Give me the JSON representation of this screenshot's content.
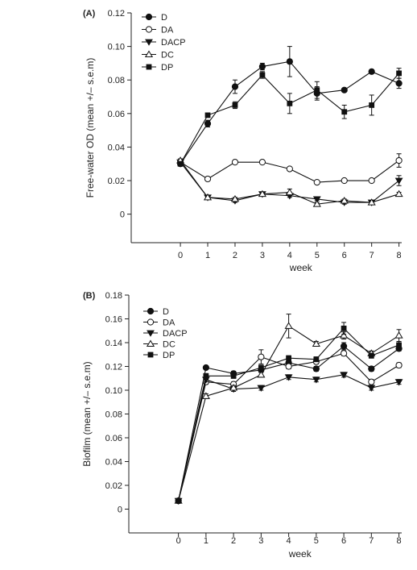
{
  "chart_data": [
    {
      "panel_label": "(A)",
      "type": "line",
      "ylabel": "Free-water OD (mean +/– s.e.m)",
      "xlabel": "week",
      "xlim": [
        -1.8,
        8.1
      ],
      "ylim": [
        -0.017,
        0.12
      ],
      "yticks": [
        0,
        0.02,
        0.04,
        0.06,
        0.08,
        0.1,
        0.12
      ],
      "ytick_labels": [
        "0",
        "0.02",
        "0.04",
        "0.06",
        "0.08",
        "0.10",
        "0.12"
      ],
      "xticks": [
        0,
        1,
        2,
        3,
        4,
        5,
        6,
        7,
        8
      ],
      "xtick_labels": [
        "0",
        "1",
        "2",
        "3",
        "4",
        "5",
        "6",
        "7",
        "8"
      ],
      "legend_position": "top-left",
      "series": [
        {
          "name": "D",
          "marker": "filled-circle",
          "x": [
            0,
            1,
            2,
            3,
            4,
            5,
            6,
            7,
            8
          ],
          "values": [
            0.03,
            0.054,
            0.076,
            0.088,
            0.091,
            0.072,
            0.074,
            0.085,
            0.078
          ],
          "err": [
            0.001,
            0.002,
            0.004,
            0.002,
            0.009,
            0.004,
            0.001,
            0.001,
            0.003
          ]
        },
        {
          "name": "DA",
          "marker": "open-circle",
          "x": [
            0,
            1,
            2,
            3,
            4,
            5,
            6,
            7,
            8
          ],
          "values": [
            0.031,
            0.021,
            0.031,
            0.031,
            0.027,
            0.019,
            0.02,
            0.02,
            0.032
          ],
          "err": [
            0.001,
            0.001,
            0.001,
            0.001,
            0.001,
            0.001,
            0.001,
            0.001,
            0.004
          ]
        },
        {
          "name": "DACP",
          "marker": "filled-triangle-down",
          "x": [
            0,
            1,
            2,
            3,
            4,
            5,
            6,
            7,
            8
          ],
          "values": [
            0.031,
            0.01,
            0.008,
            0.012,
            0.011,
            0.009,
            0.007,
            0.007,
            0.02
          ],
          "err": [
            0.001,
            0.001,
            0.001,
            0.001,
            0.001,
            0.001,
            0.001,
            0.001,
            0.003
          ]
        },
        {
          "name": "DC",
          "marker": "open-triangle-up",
          "x": [
            0,
            1,
            2,
            3,
            4,
            5,
            6,
            7,
            8
          ],
          "values": [
            0.032,
            0.01,
            0.009,
            0.012,
            0.013,
            0.006,
            0.008,
            0.007,
            0.012
          ],
          "err": [
            0.001,
            0.001,
            0.001,
            0.001,
            0.002,
            0.001,
            0.001,
            0.001,
            0.001
          ]
        },
        {
          "name": "DP",
          "marker": "filled-square",
          "x": [
            0,
            1,
            2,
            3,
            4,
            5,
            6,
            7,
            8
          ],
          "values": [
            0.03,
            0.059,
            0.065,
            0.083,
            0.066,
            0.074,
            0.061,
            0.065,
            0.084
          ],
          "err": [
            0.001,
            0.001,
            0.002,
            0.002,
            0.006,
            0.005,
            0.004,
            0.006,
            0.003
          ]
        }
      ]
    },
    {
      "panel_label": "(B)",
      "type": "line",
      "ylabel": "Biofilm (mean +/– s.e.m)",
      "xlabel": "week",
      "xlim": [
        -1.8,
        8.1
      ],
      "ylim": [
        -0.02,
        0.18
      ],
      "yticks": [
        0,
        0.02,
        0.04,
        0.06,
        0.08,
        0.1,
        0.12,
        0.14,
        0.16,
        0.18
      ],
      "ytick_labels": [
        "0",
        "0.02",
        "0.04",
        "0.06",
        "0.08",
        "0.10",
        "0.12",
        "0.14",
        "0.16",
        "0.18"
      ],
      "xticks": [
        0,
        1,
        2,
        3,
        4,
        5,
        6,
        7,
        8
      ],
      "xtick_labels": [
        "0",
        "1",
        "2",
        "3",
        "4",
        "5",
        "6",
        "7",
        "8"
      ],
      "legend_position": "top-left",
      "series": [
        {
          "name": "D",
          "marker": "filled-circle",
          "x": [
            0,
            1,
            2,
            3,
            4,
            5,
            6,
            7,
            8
          ],
          "values": [
            0.007,
            0.119,
            0.114,
            0.117,
            0.123,
            0.118,
            0.137,
            0.118,
            0.135
          ],
          "err": [
            0.001,
            0.001,
            0.002,
            0.002,
            0.002,
            0.002,
            0.003,
            0.002,
            0.002
          ]
        },
        {
          "name": "DA",
          "marker": "open-circle",
          "x": [
            0,
            1,
            2,
            3,
            4,
            5,
            6,
            7,
            8
          ],
          "values": [
            0.007,
            0.107,
            0.105,
            0.128,
            0.12,
            0.124,
            0.131,
            0.107,
            0.121
          ],
          "err": [
            0.001,
            0.002,
            0.002,
            0.006,
            0.002,
            0.002,
            0.002,
            0.002,
            0.002
          ]
        },
        {
          "name": "DACP",
          "marker": "filled-triangle-down",
          "x": [
            0,
            1,
            2,
            3,
            4,
            5,
            6,
            7,
            8
          ],
          "values": [
            0.007,
            0.109,
            0.101,
            0.102,
            0.111,
            0.109,
            0.113,
            0.102,
            0.107
          ],
          "err": [
            0.001,
            0.002,
            0.002,
            0.002,
            0.002,
            0.002,
            0.002,
            0.002,
            0.002
          ]
        },
        {
          "name": "DC",
          "marker": "open-triangle-up",
          "x": [
            0,
            1,
            2,
            3,
            4,
            5,
            6,
            7,
            8
          ],
          "values": [
            0.007,
            0.095,
            0.102,
            0.113,
            0.154,
            0.139,
            0.146,
            0.131,
            0.146
          ],
          "err": [
            0.001,
            0.002,
            0.002,
            0.002,
            0.01,
            0.002,
            0.003,
            0.002,
            0.005
          ]
        },
        {
          "name": "DP",
          "marker": "filled-square",
          "x": [
            0,
            1,
            2,
            3,
            4,
            5,
            6,
            7,
            8
          ],
          "values": [
            0.007,
            0.112,
            0.112,
            0.119,
            0.127,
            0.126,
            0.152,
            0.129,
            0.138
          ],
          "err": [
            0.001,
            0.002,
            0.002,
            0.002,
            0.002,
            0.002,
            0.005,
            0.002,
            0.003
          ]
        }
      ]
    }
  ]
}
